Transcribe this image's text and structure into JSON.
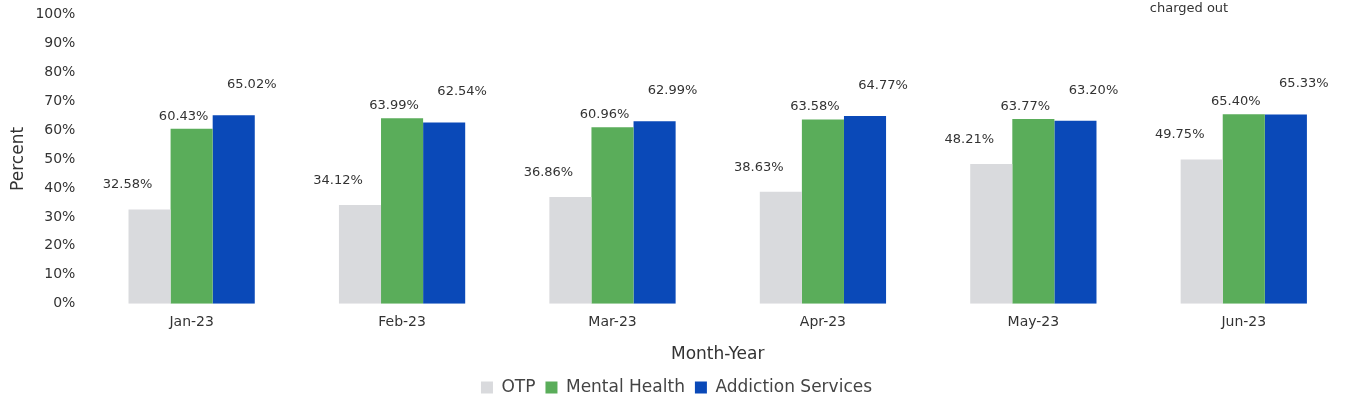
{
  "chart_data": {
    "type": "bar",
    "xlabel": "Month-Year",
    "ylabel": "Percent",
    "categories": [
      "Jan-23",
      "Feb-23",
      "Mar-23",
      "Apr-23",
      "May-23",
      "Jun-23"
    ],
    "series": [
      {
        "name": "OTP",
        "color": "#d9dadd",
        "values": [
          32.58,
          34.12,
          36.86,
          38.63,
          48.21,
          49.75
        ],
        "value_labels": [
          "32.58%",
          "34.12%",
          "36.86%",
          "38.63%",
          "48.21%",
          "49.75%"
        ]
      },
      {
        "name": "Mental Health",
        "color": "#5aad5a",
        "values": [
          60.43,
          63.99,
          60.96,
          63.58,
          63.77,
          65.4
        ],
        "value_labels": [
          "60.43%",
          "63.99%",
          "60.96%",
          "63.58%",
          "63.77%",
          "65.40%"
        ]
      },
      {
        "name": "Addiction Services",
        "color": "#0a49b8",
        "values": [
          65.02,
          62.54,
          62.99,
          64.77,
          63.2,
          65.33
        ],
        "value_labels": [
          "65.02%",
          "62.54%",
          "62.99%",
          "64.77%",
          "63.20%",
          "65.33%"
        ]
      }
    ],
    "ylim": [
      0,
      100
    ],
    "yticks": [
      {
        "value": 0,
        "label": "0%"
      },
      {
        "value": 10,
        "label": "10%"
      },
      {
        "value": 20,
        "label": "20%"
      },
      {
        "value": 30,
        "label": "30%"
      },
      {
        "value": 40,
        "label": "40%"
      },
      {
        "value": 50,
        "label": "50%"
      },
      {
        "value": 60,
        "label": "60%"
      },
      {
        "value": 70,
        "label": "70%"
      },
      {
        "value": 80,
        "label": "80%"
      },
      {
        "value": 90,
        "label": "90%"
      },
      {
        "value": 100,
        "label": "100%"
      }
    ],
    "legend": "bottom",
    "annotations": [
      "charged out"
    ]
  }
}
